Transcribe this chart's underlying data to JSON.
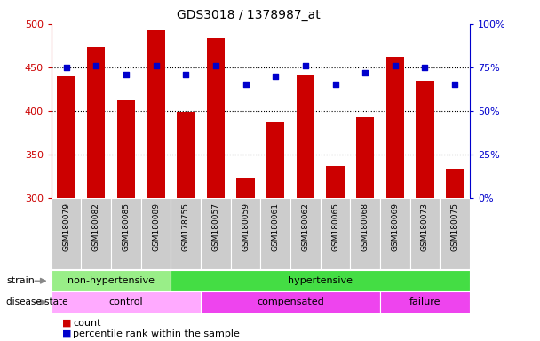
{
  "title": "GDS3018 / 1378987_at",
  "samples": [
    "GSM180079",
    "GSM180082",
    "GSM180085",
    "GSM180089",
    "GSM178755",
    "GSM180057",
    "GSM180059",
    "GSM180061",
    "GSM180062",
    "GSM180065",
    "GSM180068",
    "GSM180069",
    "GSM180073",
    "GSM180075"
  ],
  "counts": [
    440,
    473,
    412,
    493,
    399,
    484,
    323,
    388,
    442,
    336,
    393,
    462,
    435,
    333
  ],
  "percentile_ranks": [
    75,
    76,
    71,
    76,
    71,
    76,
    65,
    70,
    76,
    65,
    72,
    76,
    75,
    65
  ],
  "ylim_left": [
    300,
    500
  ],
  "ylim_right": [
    0,
    100
  ],
  "yticks_left": [
    300,
    350,
    400,
    450,
    500
  ],
  "yticks_right": [
    0,
    25,
    50,
    75,
    100
  ],
  "bar_color": "#cc0000",
  "dot_color": "#0000cc",
  "strain_groups": [
    {
      "label": "non-hypertensive",
      "start": 0,
      "end": 4,
      "color": "#99ee88"
    },
    {
      "label": "hypertensive",
      "start": 4,
      "end": 14,
      "color": "#44dd44"
    }
  ],
  "disease_groups": [
    {
      "label": "control",
      "start": 0,
      "end": 5,
      "color": "#ffaaff"
    },
    {
      "label": "compensated",
      "start": 5,
      "end": 11,
      "color": "#ee44ee"
    },
    {
      "label": "failure",
      "start": 11,
      "end": 14,
      "color": "#ee44ee"
    }
  ],
  "background_color": "#ffffff",
  "tick_label_bg": "#cccccc"
}
